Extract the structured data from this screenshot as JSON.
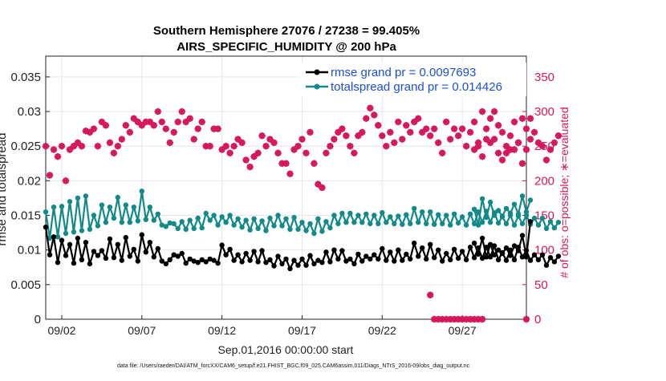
{
  "chart_data": {
    "type": "line",
    "title": "Southern Hemisphere 27076 / 27238 = 99.405%",
    "subtitle": "AIRS_SPECIFIC_HUMIDITY @ 200 hPa",
    "xlabel": "Sep.01,2016 00:00:00 start",
    "ylabel_left": "rmse and totalspread",
    "ylabel_right": "# of obs: o=possible; ∗=evaluated",
    "footer": "data file: /Users/raeder/DAI/ATM_forcXX/CAM6_setup/f.e21.FHIST_BGC.f09_025.CAM6assim.011/Diags_NTrS_2016-09/obs_diag_output.nc",
    "xlim": [
      1,
      31
    ],
    "ylim_left": [
      0,
      0.038
    ],
    "ylim_right": [
      0,
      380
    ],
    "x_ticks": [
      {
        "value": 2,
        "label": "09/02"
      },
      {
        "value": 7,
        "label": "09/07"
      },
      {
        "value": 12,
        "label": "09/12"
      },
      {
        "value": 17,
        "label": "09/17"
      },
      {
        "value": 22,
        "label": "09/22"
      },
      {
        "value": 27,
        "label": "09/27"
      }
    ],
    "y_ticks_left": [
      "0",
      "0.005",
      "0.01",
      "0.015",
      "0.02",
      "0.025",
      "0.03",
      "0.035"
    ],
    "y_ticks_left_values": [
      0,
      0.005,
      0.01,
      0.015,
      0.02,
      0.025,
      0.03,
      0.035
    ],
    "y_ticks_right": [
      "0",
      "50",
      "100",
      "150",
      "200",
      "250",
      "300",
      "350"
    ],
    "y_ticks_right_values": [
      0,
      50,
      100,
      150,
      200,
      250,
      300,
      350
    ],
    "grid": true,
    "legend_placement": "top-right",
    "colors": {
      "rmse": "#000000",
      "totalspread": "#138a8a",
      "obs": "#d6175c",
      "legend_text": "#1a4fd6",
      "grid": "#e6e6e6"
    },
    "series": [
      {
        "name": "rmse grand pr = 0.0097693",
        "axis": "left",
        "color": "#000000",
        "segments": [
          {
            "x_start": 1.0,
            "x_step": 0.25,
            "values": [
              0.0133,
              0.0093,
              0.0119,
              0.0082,
              0.0114,
              0.0092,
              0.0108,
              0.0081,
              0.0117,
              0.0086,
              0.0111,
              0.008,
              0.0098,
              0.0092,
              0.0099,
              0.0088,
              0.0116,
              0.0089,
              0.0108,
              0.0085,
              0.0118,
              0.0091,
              0.0101,
              0.0084,
              0.0122,
              0.0097,
              0.0111,
              0.009,
              0.0102,
              0.0084,
              0.008,
              0.0086,
              0.0093,
              0.0091,
              0.0095,
              0.0081,
              0.0087,
              0.0084,
              0.0082,
              0.0086,
              0.0083,
              0.0087,
              0.0085,
              0.0081,
              0.0107,
              0.0093,
              0.0101,
              0.0085,
              0.0093,
              0.0083,
              0.0095,
              0.0085,
              0.0098,
              0.0083,
              0.0099,
              0.0082,
              0.0086,
              0.0077,
              0.0091,
              0.008,
              0.0087,
              0.0073,
              0.0085,
              0.0078,
              0.0087,
              0.0078,
              0.0092,
              0.008,
              0.0085,
              0.0082,
              0.0097,
              0.0083,
              0.01,
              0.0087,
              0.0099,
              0.0084,
              0.0087,
              0.008,
              0.0094,
              0.0084,
              0.0091,
              0.0087,
              0.0093,
              0.0087,
              0.0102,
              0.0085,
              0.0097,
              0.0084,
              0.01,
              0.0085,
              0.0094,
              0.0087,
              0.011,
              0.0091,
              0.0103,
              0.0087,
              0.0108,
              0.0089,
              0.01,
              0.0084,
              0.0095,
              0.0086,
              0.0101,
              0.0088,
              0.0098,
              0.0086,
              0.0104,
              0.0089,
              0.0103,
              0.0088,
              0.0104,
              0.009,
              0.0106,
              0.0086,
              0.0096,
              0.0085,
              0.01,
              0.0086,
              0.0104,
              0.009,
              0.0099,
              0.0085,
              0.0093,
              0.0086,
              0.0093,
              0.0078,
              0.0089,
              0.0083,
              0.0091
            ]
          },
          {
            "x_start": 27.75,
            "x_step": 0.25,
            "values": [
              0.011,
              0.0094,
              0.0117,
              0.009,
              0.0108,
              0.0093,
              0.01,
              0.0095,
              0.0103,
              0.0092,
              0.0106,
              0.0099,
              0.0121,
              0.009,
              0.0141
            ]
          }
        ]
      },
      {
        "name": "totalspread grand pr = 0.014426",
        "axis": "left",
        "color": "#138a8a",
        "segments": [
          {
            "x_start": 1.0,
            "x_step": 0.25,
            "values": [
              0.0155,
              0.0117,
              0.0162,
              0.0119,
              0.0163,
              0.0124,
              0.017,
              0.0126,
              0.0175,
              0.0128,
              0.0178,
              0.013,
              0.015,
              0.0135,
              0.0165,
              0.014,
              0.0162,
              0.0146,
              0.0176,
              0.014,
              0.0165,
              0.014,
              0.0162,
              0.0142,
              0.0185,
              0.0144,
              0.0162,
              0.0143,
              0.0152,
              0.0136,
              0.0134,
              0.0139,
              0.0138,
              0.0131,
              0.0141,
              0.013,
              0.0143,
              0.0131,
              0.0146,
              0.0132,
              0.0153,
              0.0143,
              0.015,
              0.0136,
              0.0148,
              0.014,
              0.015,
              0.0136,
              0.0145,
              0.0133,
              0.0143,
              0.0129,
              0.0145,
              0.0131,
              0.0142,
              0.0128,
              0.0146,
              0.0135,
              0.015,
              0.0135,
              0.0145,
              0.013,
              0.0147,
              0.013,
              0.014,
              0.0128,
              0.0138,
              0.0124,
              0.0145,
              0.0127,
              0.0141,
              0.0132,
              0.015,
              0.0138,
              0.0153,
              0.014,
              0.0153,
              0.014,
              0.015,
              0.014,
              0.0152,
              0.0138,
              0.015,
              0.0138,
              0.0154,
              0.014,
              0.0148,
              0.0138,
              0.0149,
              0.0137,
              0.0151,
              0.0138,
              0.016,
              0.014,
              0.0155,
              0.0138,
              0.0155,
              0.0137,
              0.0151,
              0.0138,
              0.015,
              0.0136,
              0.0152,
              0.0139,
              0.0148,
              0.0136,
              0.0152,
              0.0138,
              0.0155,
              0.014,
              0.0156,
              0.014,
              0.0154,
              0.0139,
              0.0148,
              0.0138,
              0.015,
              0.0136,
              0.0149,
              0.0138,
              0.015,
              0.0137,
              0.0146,
              0.0136,
              0.0146,
              0.0131,
              0.0141,
              0.0132,
              0.014
            ]
          },
          {
            "x_start": 27.75,
            "x_step": 0.25,
            "values": [
              0.0159,
              0.0136,
              0.0174,
              0.0147,
              0.0169,
              0.015,
              0.0157,
              0.0149,
              0.016,
              0.0153,
              0.0166,
              0.0152,
              0.0178,
              0.0155,
              0.0172
            ]
          }
        ]
      },
      {
        "name": "obs possible",
        "axis": "right",
        "marker": "o",
        "color": "#d6175c",
        "segments": [
          {
            "x_start": 1.0,
            "x_step": 0.25,
            "values": [
              250,
              208,
              245,
              235,
              250,
              200,
              245,
              250,
              255,
              250,
              272,
              270,
              275,
              250,
              285,
              280,
              255,
              240,
              250,
              260,
              280,
              270,
              290,
              285,
              280,
              285,
              285,
              280,
              300,
              285,
              275,
              255,
              270,
              285,
              300,
              285,
              290,
              260,
              275,
              285,
              250,
              250,
              275,
              275,
              245,
              250,
              240,
              250,
              260,
              255,
              230,
              220,
              235,
              240,
              265,
              250,
              260,
              255,
              240,
              225,
              225,
              210,
              245,
              250,
              260,
              240,
              270,
              225,
              195,
              190,
              240,
              250,
              260,
              270,
              275,
              265,
              250,
              240,
              265,
              270,
              290,
              305,
              295,
              280,
              265,
              250,
              270,
              255,
              285,
              260,
              280,
              270,
              285,
              290,
              270,
              275,
              265,
              275,
              255,
              240,
              285,
              260,
              275,
              265,
              275,
              250,
              270,
              245,
              255,
              235,
              275,
              255,
              300,
              280,
              270,
              250,
              265,
              285,
              255,
              225,
              275,
              260,
              270,
              255,
              250,
              230,
              245,
              255,
              265
            ]
          },
          {
            "x_start": 25.0,
            "x_step": 0.25,
            "values": [
              35,
              0,
              0,
              0,
              0,
              0,
              0,
              0,
              0,
              0,
              0,
              0,
              0,
              0
            ]
          },
          {
            "x_start": 27.75,
            "x_step": 0.25,
            "values": [
              285,
              250,
              300,
              260,
              290,
              260,
              240,
              230,
              240,
              245,
              245,
              255,
              290,
              245,
              290
            ]
          },
          {
            "x_start": 31.0,
            "x_step": 0.25,
            "values": [
              0
            ]
          }
        ]
      },
      {
        "name": "obs evaluated",
        "axis": "right",
        "marker": "*",
        "color": "#d6175c",
        "segments": [
          {
            "x_start": 1.0,
            "x_step": 0.25,
            "values": [
              250,
              208,
              245,
              235,
              250,
              200,
              245,
              250,
              255,
              250,
              272,
              270,
              275,
              250,
              285,
              280,
              255,
              240,
              250,
              260,
              280,
              270,
              290,
              285,
              280,
              285,
              285,
              280,
              300,
              285,
              275,
              255,
              270,
              285,
              300,
              285,
              290,
              260,
              275,
              285,
              250,
              250,
              275,
              275,
              245,
              250,
              240,
              250,
              260,
              255,
              230,
              220,
              235,
              240,
              265,
              250,
              260,
              255,
              240,
              225,
              225,
              210,
              245,
              250,
              260,
              240,
              270,
              225,
              195,
              190,
              240,
              250,
              260,
              270,
              275,
              265,
              250,
              240,
              265,
              270,
              290,
              305,
              295,
              280,
              265,
              250,
              270,
              255,
              285,
              260,
              280,
              270,
              285,
              290,
              270,
              275,
              265,
              275,
              255,
              240,
              285,
              260,
              275,
              265,
              275,
              250,
              270,
              245,
              255,
              235,
              275,
              255,
              300,
              280,
              270,
              250,
              265,
              285,
              255,
              225,
              275,
              260,
              270,
              255,
              250,
              230,
              245,
              255,
              265
            ]
          },
          {
            "x_start": 25.0,
            "x_step": 0.25,
            "values": [
              35,
              0,
              0,
              0,
              0,
              0,
              0,
              0,
              0,
              0,
              0,
              0,
              0,
              0
            ]
          },
          {
            "x_start": 27.75,
            "x_step": 0.25,
            "values": [
              285,
              250,
              300,
              260,
              290,
              260,
              240,
              230,
              240,
              245,
              245,
              255,
              290,
              245,
              290
            ]
          },
          {
            "x_start": 31.0,
            "x_step": 0.25,
            "values": [
              0
            ]
          }
        ]
      }
    ]
  }
}
